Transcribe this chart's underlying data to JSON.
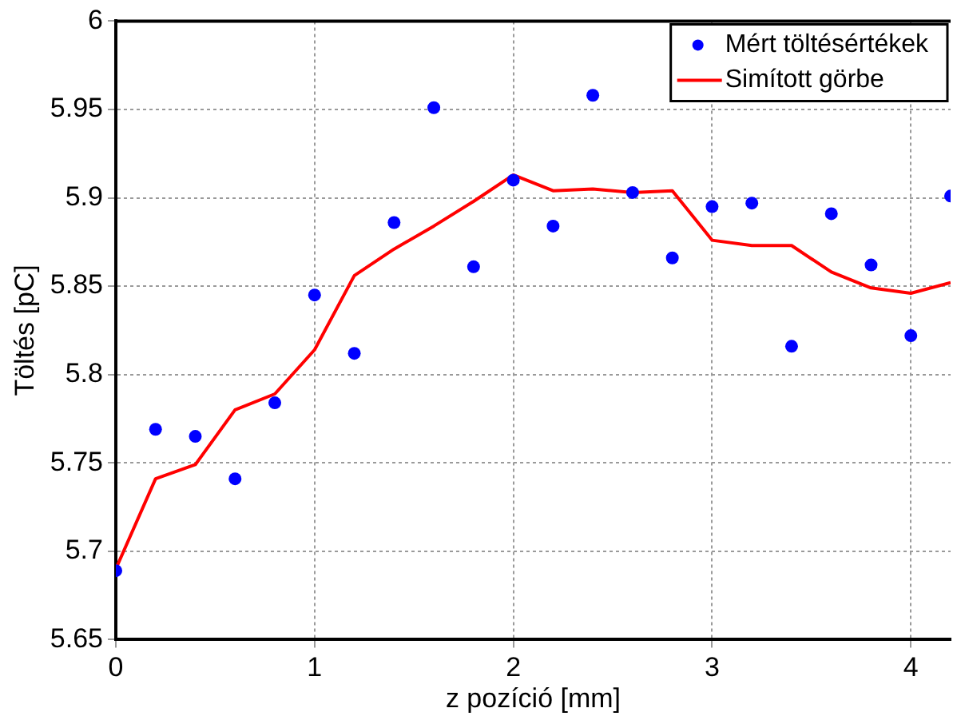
{
  "chart_data": {
    "type": "scatter",
    "xlabel": "z pozíció [mm]",
    "ylabel": "Töltés [pC]",
    "x": [
      0,
      0.2,
      0.4,
      0.6,
      0.8,
      1.0,
      1.2,
      1.4,
      1.6,
      1.8,
      2.0,
      2.2,
      2.4,
      2.6,
      2.8,
      3.0,
      3.2,
      3.4,
      3.6,
      3.8,
      4.0,
      4.2
    ],
    "series": [
      {
        "name": "Mért töltésértékek",
        "type": "scatter",
        "color": "#0000ff",
        "marker": "circle",
        "values": [
          5.689,
          5.769,
          5.765,
          5.741,
          5.784,
          5.845,
          5.812,
          5.886,
          5.951,
          5.861,
          5.91,
          5.884,
          5.958,
          5.903,
          5.866,
          5.895,
          5.897,
          5.816,
          5.891,
          5.862,
          5.822,
          5.901
        ]
      },
      {
        "name": "Simított görbe",
        "type": "line",
        "color": "#ff0000",
        "marker": "none",
        "line_style": "solid",
        "values": [
          5.69,
          5.741,
          5.749,
          5.78,
          5.789,
          5.814,
          5.856,
          5.871,
          5.884,
          5.898,
          5.913,
          5.904,
          5.905,
          5.903,
          5.904,
          5.876,
          5.873,
          5.873,
          5.858,
          5.849,
          5.846,
          5.852
        ]
      }
    ],
    "xlim": [
      0,
      4.2
    ],
    "xticks": [
      0,
      1,
      2,
      3,
      4
    ],
    "ylim": [
      5.65,
      6
    ],
    "yticks": [
      5.65,
      5.7,
      5.75,
      5.8,
      5.85,
      5.9,
      5.95,
      6
    ],
    "grid": true,
    "legend": "top right"
  }
}
